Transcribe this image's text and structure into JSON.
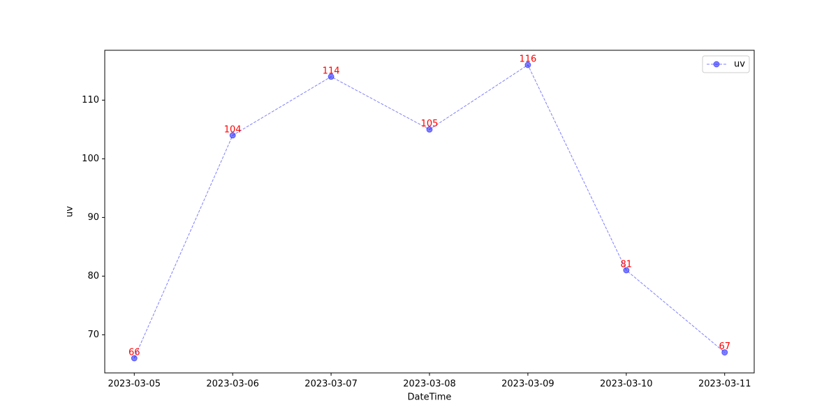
{
  "chart_data": {
    "type": "line",
    "xlabel": "DateTime",
    "ylabel": "uv",
    "categories": [
      "2023-03-05",
      "2023-03-06",
      "2023-03-07",
      "2023-03-08",
      "2023-03-09",
      "2023-03-10",
      "2023-03-11"
    ],
    "series": [
      {
        "name": "uv",
        "color": "blue",
        "values": [
          66,
          104,
          114,
          105,
          116,
          81,
          67
        ]
      }
    ],
    "ylim": [
      63.5,
      118.5
    ],
    "yticks": [
      70,
      80,
      90,
      100,
      110
    ],
    "legend": "upper right",
    "data_label_color": "red"
  }
}
